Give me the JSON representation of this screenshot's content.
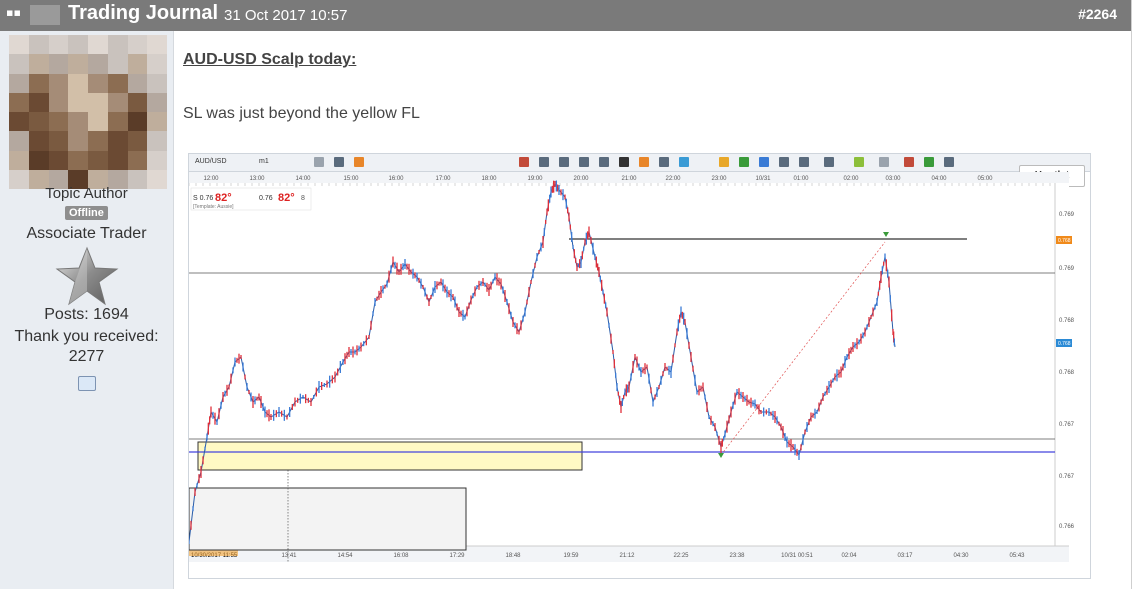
{
  "header": {
    "pin_glyph": "▪▪",
    "title": "Trading Journal",
    "date": "31 Oct 2017 10:57",
    "post_number": "#2264"
  },
  "author": {
    "role": "Topic Author",
    "status_badge": "Offline",
    "rank": "Associate Trader",
    "posts": "Posts: 1694",
    "thanks_line1": "Thank you received:",
    "thanks_line2": "2277",
    "message_icon": "speech-bubble-icon"
  },
  "post": {
    "heading": "AUD-USD Scalp today:",
    "body": "SL was just beyond the yellow FL"
  },
  "chart_toolbar": {
    "symbol": "AUD/USD",
    "timeframe": "m1",
    "hootlet_label": "Hootlet"
  },
  "chart_data": {
    "type": "candlestick",
    "top_time_labels": [
      "12:00",
      "13:00",
      "14:00",
      "15:00",
      "16:00",
      "17:00",
      "18:00",
      "19:00",
      "20:00",
      "21:00",
      "22:00",
      "23:00",
      "10/31",
      "01:00",
      "02:00",
      "03:00",
      "04:00",
      "05:00"
    ],
    "bottom_time_labels": [
      "10/30/2017 11:55",
      "13:41",
      "14:54",
      "16:08",
      "17:29",
      "18:48",
      "19:59",
      "21:12",
      "22:25",
      "23:38",
      "10/31 00:51",
      "02:04",
      "03:17",
      "04:30",
      "05:43"
    ],
    "price_labels": [
      "0.769",
      "0.769",
      "0.768",
      "0.768",
      "0.767",
      "0.767",
      "0.766"
    ],
    "price_markers": [
      "0.768",
      "0.768"
    ],
    "quote_box": {
      "sell": "0.76",
      "sell_pips": "82",
      "sell_frac": "6",
      "buy": "0.76",
      "buy_pips": "82",
      "buy_frac": "8",
      "template": "[Template: Aussie]"
    },
    "colors": {
      "up": "#3a7bd5",
      "down": "#e0303a",
      "zone_fill": "#fff9c4",
      "blue_line": "#4444dd"
    }
  }
}
